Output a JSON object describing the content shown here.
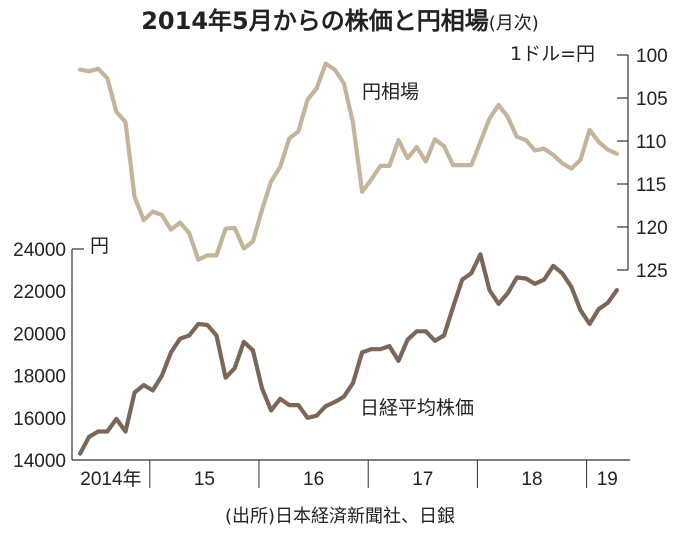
{
  "chart_data": {
    "type": "line",
    "title": "2014年5月からの株価と円相場",
    "title_note": "(月次)",
    "source": "(出所)日本経済新聞社、日銀",
    "x": {
      "start": "2014-05",
      "end": "2019-04",
      "frequency": "monthly",
      "tick_labels": [
        "2014年",
        "15",
        "16",
        "17",
        "18",
        "19"
      ]
    },
    "y_left": {
      "unit": "円",
      "ylim": [
        14000,
        24000
      ],
      "ticks": [
        14000,
        16000,
        18000,
        20000,
        22000,
        24000
      ]
    },
    "y_right": {
      "unit": "1ドル=円",
      "ylim": [
        100,
        125
      ],
      "inverted": true,
      "ticks": [
        100,
        105,
        110,
        115,
        120,
        125
      ]
    },
    "grid": false,
    "series": [
      {
        "name": "円相場",
        "axis": "right",
        "color": "#c4b49a",
        "values": [
          101.7,
          101.9,
          101.6,
          102.7,
          106.6,
          107.8,
          116.5,
          119.2,
          118.2,
          118.6,
          120.3,
          119.5,
          120.7,
          123.8,
          123.3,
          123.3,
          120.2,
          120.1,
          122.5,
          121.7,
          118.0,
          114.7,
          113.0,
          109.7,
          108.9,
          105.2,
          103.9,
          101.0,
          101.7,
          103.3,
          107.9,
          115.9,
          114.5,
          112.9,
          112.9,
          109.9,
          112.0,
          110.7,
          112.4,
          109.8,
          110.6,
          112.8,
          112.8,
          112.8,
          110.1,
          107.4,
          105.8,
          107.2,
          109.5,
          109.9,
          111.1,
          110.9,
          111.6,
          112.6,
          113.2,
          112.2,
          108.7,
          110.1,
          111.0,
          111.5
        ]
      },
      {
        "name": "日経平均株価",
        "axis": "left",
        "color": "#7b6657",
        "values": [
          14300,
          15100,
          15350,
          15350,
          15950,
          15350,
          17200,
          17550,
          17300,
          18000,
          19100,
          19750,
          19900,
          20450,
          20400,
          19900,
          17900,
          18350,
          19600,
          19200,
          17400,
          16350,
          16900,
          16600,
          16600,
          16000,
          16100,
          16550,
          16750,
          17000,
          17650,
          19100,
          19250,
          19250,
          19400,
          18700,
          19700,
          20100,
          20100,
          19650,
          19900,
          21250,
          22550,
          22850,
          23750,
          22050,
          21400,
          21900,
          22650,
          22600,
          22350,
          22550,
          23200,
          22850,
          22200,
          21100,
          20450,
          21150,
          21450,
          22050
        ]
      }
    ]
  }
}
